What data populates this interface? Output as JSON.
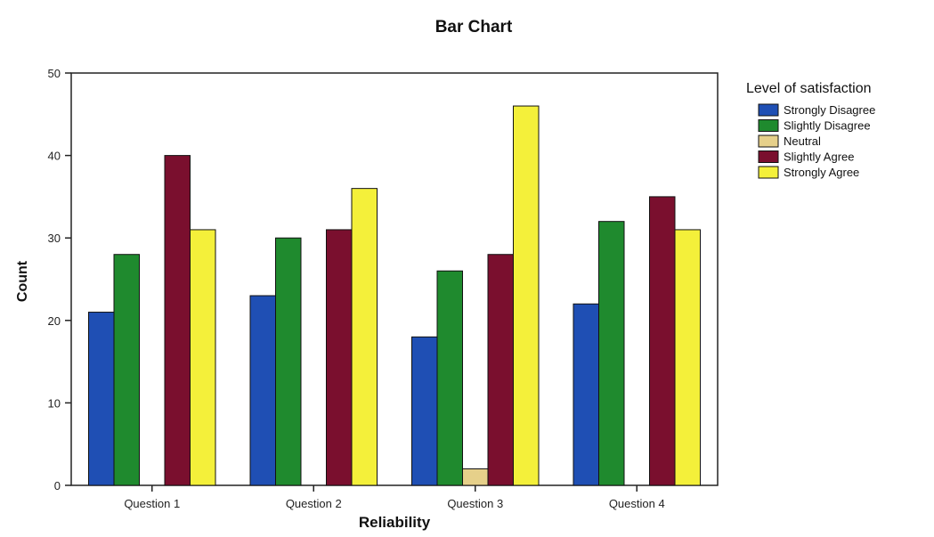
{
  "chart_data": {
    "type": "bar",
    "title": "Bar Chart",
    "xlabel": "Reliability",
    "ylabel": "Count",
    "ylim": [
      0,
      50
    ],
    "yticks": [
      0,
      10,
      20,
      30,
      40,
      50
    ],
    "categories": [
      "Question 1",
      "Question 2",
      "Question 3",
      "Question 4"
    ],
    "legend": {
      "title": "Level of satisfaction",
      "position": "right"
    },
    "series": [
      {
        "name": "Strongly Disagree",
        "color": "#1f4fb4",
        "values": [
          21,
          23,
          18,
          22
        ]
      },
      {
        "name": "Slightly Disagree",
        "color": "#1f8a2e",
        "values": [
          28,
          30,
          26,
          32
        ]
      },
      {
        "name": "Neutral",
        "color": "#e6d08a",
        "values": [
          0,
          0,
          2,
          0
        ]
      },
      {
        "name": "Slightly Agree",
        "color": "#7a0f2e",
        "values": [
          40,
          31,
          28,
          35
        ]
      },
      {
        "name": "Strongly Agree",
        "color": "#f4f03a",
        "values": [
          31,
          36,
          46,
          31
        ]
      }
    ]
  }
}
